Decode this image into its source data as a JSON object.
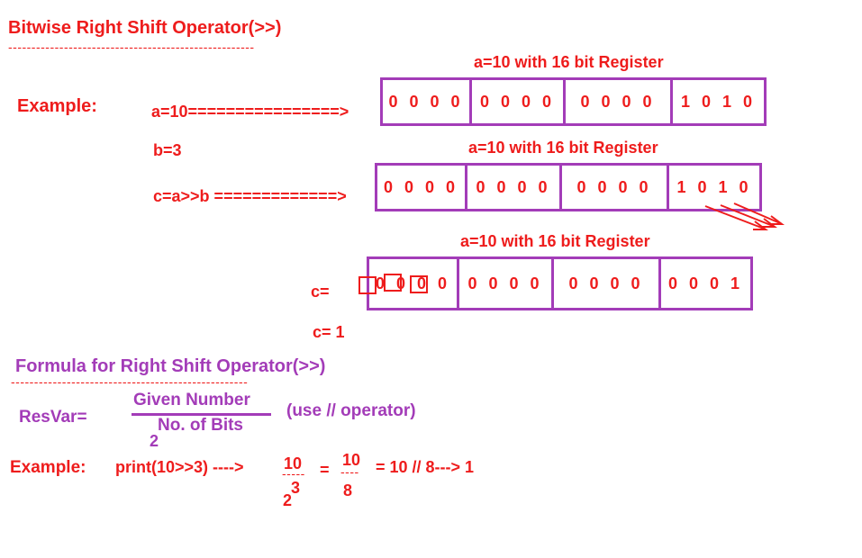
{
  "title": "Bitwise Right Shift Operator(>>)",
  "title_dashes": "-----------------------------------------------------",
  "example_label": "Example:",
  "line_a": "a=10================>",
  "line_b": "b=3",
  "line_c": "c=a>>b =============>",
  "register_caption": "a=10  with  16 bit Register",
  "reg1": [
    "0 0 0 0",
    "0 0 0 0",
    "0 0 0 0",
    "1 0 1 0"
  ],
  "reg2": [
    "0 0 0 0",
    "0 0 0 0",
    "0 0 0 0",
    "1 0 1 0"
  ],
  "reg3": [
    "0 0 0 0",
    "0 0 0 0",
    "0 0 0 0",
    "0 0 0 1"
  ],
  "c_label": "c=",
  "c_result": "c= 1",
  "formula_title": "Formula for Right Shift Operator(>>)",
  "formula_dashes": "---------------------------------------------------",
  "resvar": "ResVar=",
  "numerator": "Given Number",
  "denominator": "No. of Bits",
  "base": "2",
  "use_op": "(use // operator)",
  "example2_label": "Example:",
  "print_expr": "print(10>>3) ---->",
  "frac1_num": "10",
  "frac1_dash": "-----",
  "frac1_exp": "3",
  "frac1_base": "2",
  "eq1": "=",
  "frac2_num": "10",
  "frac2_dash": "----",
  "frac2_den": "8",
  "final": "=  10 // 8---> 1"
}
